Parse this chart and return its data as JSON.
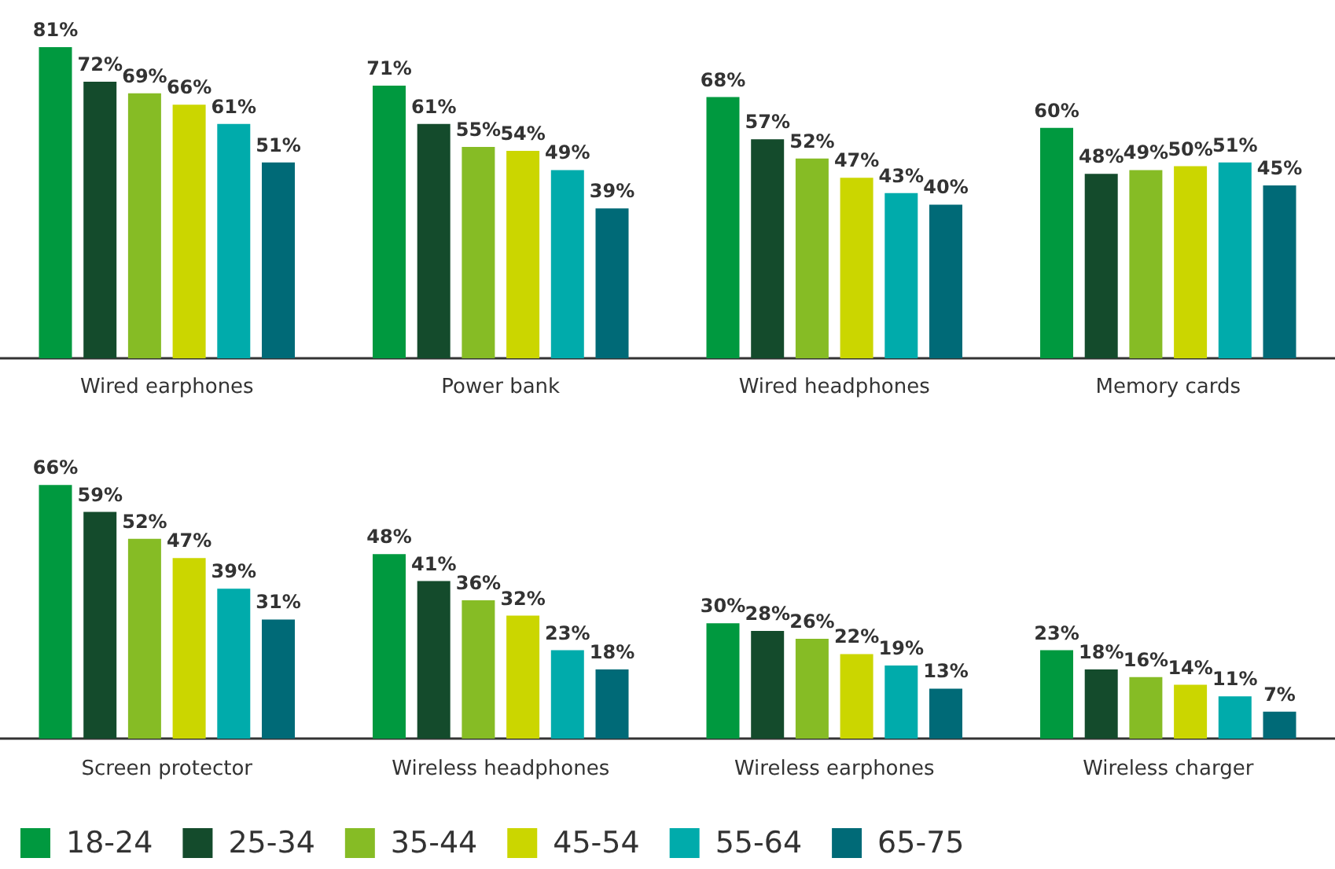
{
  "chart_data": [
    {
      "type": "bar",
      "categories": [
        "Wired earphones",
        "Power bank",
        "Wired headphones",
        "Memory cards"
      ],
      "tick_labels": "x",
      "series": [
        {
          "color": "#00993f",
          "values": [
            81,
            71,
            68,
            60
          ],
          "value_labels": [
            "81%",
            "71%",
            "68%",
            "60%"
          ]
        },
        {
          "color": "#144b2c",
          "values": [
            72,
            61,
            57,
            48
          ],
          "value_labels": [
            "72%",
            "61%",
            "57%",
            "48%"
          ]
        },
        {
          "color": "#86bc25",
          "values": [
            69,
            55,
            52,
            49
          ],
          "value_labels": [
            "69%",
            "55%",
            "52%",
            "49%"
          ]
        },
        {
          "color": "#cbd600",
          "values": [
            66,
            54,
            47,
            50
          ],
          "value_labels": [
            "66%",
            "54%",
            "47%",
            "50%"
          ]
        },
        {
          "color": "#00abab",
          "values": [
            61,
            49,
            43,
            51
          ],
          "value_labels": [
            "61%",
            "49%",
            "43%",
            "51%"
          ]
        },
        {
          "color": "#006a77",
          "values": [
            51,
            39,
            40,
            45
          ],
          "value_labels": [
            "51%",
            "39%",
            "40%",
            "45%"
          ]
        }
      ]
    },
    {
      "type": "bar",
      "categories": [
        "Screen protector",
        "Wireless headphones",
        "Wireless earphones",
        "Wireless charger"
      ],
      "tick_labels": "x",
      "legend": "bottom left",
      "series": [
        {
          "name": "18-24",
          "color": "#00993f",
          "values": [
            66,
            48,
            30,
            23
          ],
          "value_labels": [
            "66%",
            "48%",
            "30%",
            "23%"
          ]
        },
        {
          "name": "25-34",
          "color": "#144b2c",
          "values": [
            59,
            41,
            28,
            18
          ],
          "value_labels": [
            "59%",
            "41%",
            "28%",
            "18%"
          ]
        },
        {
          "name": "35-44",
          "color": "#86bc25",
          "values": [
            52,
            36,
            26,
            16
          ],
          "value_labels": [
            "52%",
            "36%",
            "26%",
            "16%"
          ]
        },
        {
          "name": "45-54",
          "color": "#cbd600",
          "values": [
            47,
            32,
            22,
            14
          ],
          "value_labels": [
            "47%",
            "32%",
            "22%",
            "14%"
          ]
        },
        {
          "name": "55-64",
          "color": "#00abab",
          "values": [
            39,
            23,
            19,
            11
          ],
          "value_labels": [
            "39%",
            "23%",
            "19%",
            "11%"
          ]
        },
        {
          "name": "65-75",
          "color": "#006a77",
          "values": [
            31,
            18,
            13,
            7
          ],
          "value_labels": [
            "31%",
            "18%",
            "13%",
            "7%"
          ]
        }
      ]
    }
  ]
}
